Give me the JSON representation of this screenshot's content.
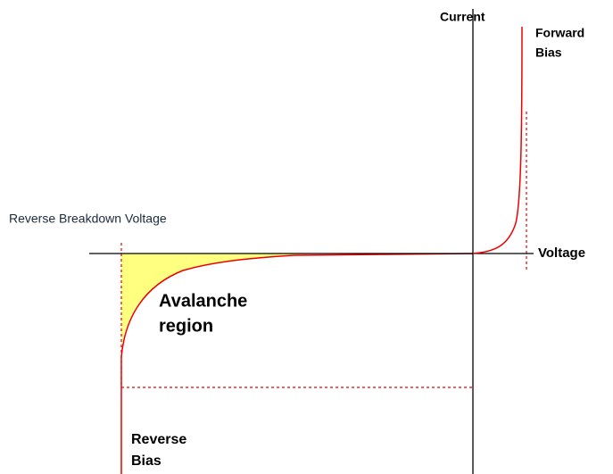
{
  "current_label": "Current",
  "forward_bias": [
    "Forward",
    "Bias"
  ],
  "breakdown_label": "Reverse Breakdown Voltage",
  "voltage_label": "Voltage",
  "avalanche_region": [
    "Avalanche",
    "region"
  ],
  "reverse_bias": [
    "Reverse",
    "Bias"
  ]
}
